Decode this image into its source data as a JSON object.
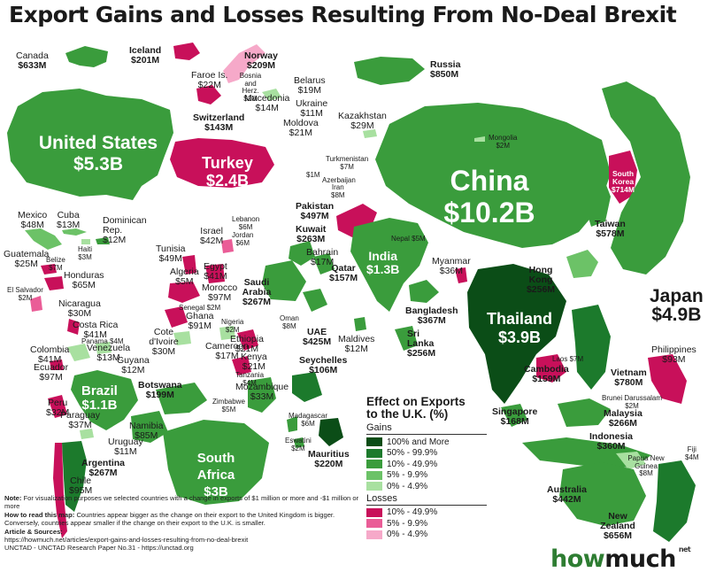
{
  "title": "Export Gains and Losses Resulting From No-Deal Brexit",
  "colors": {
    "gain_100": "#0b4d17",
    "gain_50": "#1c7a2c",
    "gain_10": "#3a9c3c",
    "gain_5": "#6cc267",
    "gain_0": "#a8e0a0",
    "loss_10": "#c8105a",
    "loss_5": "#ea5d97",
    "loss_0": "#f6a9c9"
  },
  "legend": {
    "title_line1": "Effect on Exports",
    "title_line2": "to the U.K. (%)",
    "gains_label": "Gains",
    "gains": [
      "100% and More",
      "50% - 99.9%",
      "10% - 49.9%",
      "5% - 9.9%",
      "0% - 4.9%"
    ],
    "losses_label": "Losses",
    "losses": [
      "10% - 49.9%",
      "5% - 9.9%",
      "0% - 4.9%"
    ]
  },
  "countries": {
    "canada": {
      "name": "Canada",
      "value": "$633M"
    },
    "iceland": {
      "name": "Iceland",
      "value": "$201M"
    },
    "norway": {
      "name": "Norway",
      "value": "$209M"
    },
    "faroe": {
      "name": "Faroe Is.",
      "value": "$22M"
    },
    "bosnia": {
      "name": "Bosnia and Herz.",
      "value": "$1M"
    },
    "belarus": {
      "name": "Belarus",
      "value": "$19M"
    },
    "macedonia": {
      "name": "Macedonia",
      "value": "$14M"
    },
    "ukraine": {
      "name": "Ukraine",
      "value": "$11M"
    },
    "switzerland": {
      "name": "Switzerland",
      "value": "$143M"
    },
    "moldova": {
      "name": "Moldova",
      "value": "$21M"
    },
    "russia": {
      "name": "Russia",
      "value": "$850M"
    },
    "kazakhstan": {
      "name": "Kazakhstan",
      "value": "$29M"
    },
    "mongolia": {
      "name": "Mongolia",
      "value": "$2M"
    },
    "turkmenistan": {
      "name": "Turkmenistan",
      "value": "$7M"
    },
    "georgia_unlabeled": {
      "name": "",
      "value": "$1M"
    },
    "azerbaijan": {
      "name": "Azerbaijan",
      "value": ""
    },
    "iran": {
      "name": "Iran",
      "value": "$8M"
    },
    "united_states": {
      "name": "United States",
      "value": "$5.3B"
    },
    "turkey": {
      "name": "Turkey",
      "value": "$2.4B"
    },
    "china": {
      "name": "China",
      "value": "$10.2B"
    },
    "south_korea": {
      "name": "South Korea",
      "value": "$714M"
    },
    "taiwan": {
      "name": "Taiwan",
      "value": "$578M"
    },
    "japan": {
      "name": "Japan",
      "value": "$4.9B"
    },
    "mexico": {
      "name": "Mexico",
      "value": "$48M"
    },
    "cuba": {
      "name": "Cuba",
      "value": "$13M"
    },
    "dominican_rep": {
      "name": "Dominican Rep.",
      "value": "$12M"
    },
    "haiti": {
      "name": "Haiti",
      "value": "$3M"
    },
    "guatemala": {
      "name": "Guatemala",
      "value": "$25M"
    },
    "belize": {
      "name": "Belize",
      "value": "$7M"
    },
    "honduras": {
      "name": "Honduras",
      "value": "$65M"
    },
    "el_salvador": {
      "name": "El Salvador",
      "value": "$2M"
    },
    "nicaragua": {
      "name": "Nicaragua",
      "value": "$30M"
    },
    "costa_rica": {
      "name": "Costa Rica",
      "value": "$41M"
    },
    "panama": {
      "name": "Panama",
      "value": "$4M"
    },
    "colombia": {
      "name": "Colombia",
      "value": "$41M"
    },
    "venezuela": {
      "name": "Venezuela",
      "value": "$13M"
    },
    "guyana": {
      "name": "Guyana",
      "value": "$12M"
    },
    "ecuador": {
      "name": "Ecuador",
      "value": "$97M"
    },
    "brazil": {
      "name": "Brazil",
      "value": "$1.1B"
    },
    "peru": {
      "name": "Peru",
      "value": "$32M"
    },
    "paraguay": {
      "name": "Paraguay",
      "value": "$37M"
    },
    "uruguay": {
      "name": "Uruguay",
      "value": "$11M"
    },
    "argentina": {
      "name": "Argentina",
      "value": "$267M"
    },
    "chile": {
      "name": "Chile",
      "value": "$95M"
    },
    "israel": {
      "name": "Israel",
      "value": "$42M"
    },
    "lebanon": {
      "name": "Lebanon",
      "value": "$6M"
    },
    "jordan": {
      "name": "Jordan",
      "value": "$6M"
    },
    "tunisia": {
      "name": "Tunisia",
      "value": "$49M"
    },
    "algeria": {
      "name": "Algeria",
      "value": "$5M"
    },
    "egypt": {
      "name": "Egypt",
      "value": "$41M"
    },
    "morocco": {
      "name": "Morocco",
      "value": "$97M"
    },
    "senegal": {
      "name": "Senegal",
      "value": "$2M"
    },
    "ghana": {
      "name": "Ghana",
      "value": "$91M"
    },
    "nigeria": {
      "name": "Nigeria",
      "value": "$2M"
    },
    "cote_divoire": {
      "name": "Cote d'Ivoire",
      "value": "$30M"
    },
    "cameroon": {
      "name": "Cameroon",
      "value": "$17M"
    },
    "ethiopia": {
      "name": "Ethiopia",
      "value": "$21M"
    },
    "kenya": {
      "name": "Kenya",
      "value": "$21M"
    },
    "tanzania": {
      "name": "Tanzania",
      "value": "$4M"
    },
    "seychelles": {
      "name": "Seychelles",
      "value": "$106M"
    },
    "botswana": {
      "name": "Botswana",
      "value": "$199M"
    },
    "mozambique": {
      "name": "Mozambique",
      "value": "$33M"
    },
    "zimbabwe": {
      "name": "Zimbabwe",
      "value": "$5M"
    },
    "namibia": {
      "name": "Namibia",
      "value": "$85M"
    },
    "madagascar": {
      "name": "Madagascar",
      "value": "$6M"
    },
    "eswatini": {
      "name": "Eswatini",
      "value": "$2M"
    },
    "mauritius": {
      "name": "Mauritius",
      "value": "$220M"
    },
    "south_africa": {
      "name": "South Africa",
      "value": "$3B"
    },
    "pakistan": {
      "name": "Pakistan",
      "value": "$497M"
    },
    "kuwait": {
      "name": "Kuwait",
      "value": "$263M"
    },
    "nepal": {
      "name": "Nepal",
      "value": "$5M"
    },
    "india": {
      "name": "India",
      "value": "$1.3B"
    },
    "bahrain": {
      "name": "Bahrain",
      "value": "$17M"
    },
    "qatar": {
      "name": "Qatar",
      "value": "$157M"
    },
    "saudi_arabia": {
      "name": "Saudi Arabia",
      "value": "$267M"
    },
    "oman": {
      "name": "Oman",
      "value": "$8M"
    },
    "uae": {
      "name": "UAE",
      "value": "$425M"
    },
    "maldives": {
      "name": "Maldives",
      "value": "$12M"
    },
    "myanmar": {
      "name": "Myanmar",
      "value": "$36M"
    },
    "bangladesh": {
      "name": "Bangladesh",
      "value": "$367M"
    },
    "sri_lanka": {
      "name": "Sri Lanka",
      "value": "$256M"
    },
    "hong_kong": {
      "name": "Hong Kong",
      "value": "$256M"
    },
    "thailand": {
      "name": "Thailand",
      "value": "$3.9B"
    },
    "laos": {
      "name": "Laos",
      "value": "$7M"
    },
    "cambodia": {
      "name": "Cambodia",
      "value": "$159M"
    },
    "vietnam": {
      "name": "Vietnam",
      "value": "$780M"
    },
    "philippines": {
      "name": "Philippines",
      "value": "$93M"
    },
    "brunei": {
      "name": "Brunei Darussalam",
      "value": "$2M"
    },
    "singapore": {
      "name": "Singapore",
      "value": "$168M"
    },
    "malaysia": {
      "name": "Malaysia",
      "value": "$266M"
    },
    "indonesia": {
      "name": "Indonesia",
      "value": "$360M"
    },
    "papua_new_guinea": {
      "name": "Papua New Guinea",
      "value": "$8M"
    },
    "fiji": {
      "name": "Fiji",
      "value": "$4M"
    },
    "australia": {
      "name": "Australia",
      "value": "$442M"
    },
    "new_zealand": {
      "name": "New Zealand",
      "value": "$656M"
    }
  },
  "notes": {
    "note_label": "Note:",
    "note_text": "For visualization purposes we selected countries with a change in exports of $1 million or more and -$1 million or more",
    "how_label": "How to read this map:",
    "how_text": "Countries appear bigger as the change on their export to the United Kingdom is bigger. Conversely, countries appear smaller if the change on their export to the U.K. is smaller.",
    "sources_label": "Article & Sources:",
    "source_1": "https://howmuch.net/articles/export-gains-and-losses-resulting-from-no-deal-brexit",
    "source_2": "UNCTAD - UNCTAD Research Paper No.31 - https://unctad.org"
  },
  "brand": {
    "part1": "how",
    "part2": "much",
    "suffix": "net"
  }
}
